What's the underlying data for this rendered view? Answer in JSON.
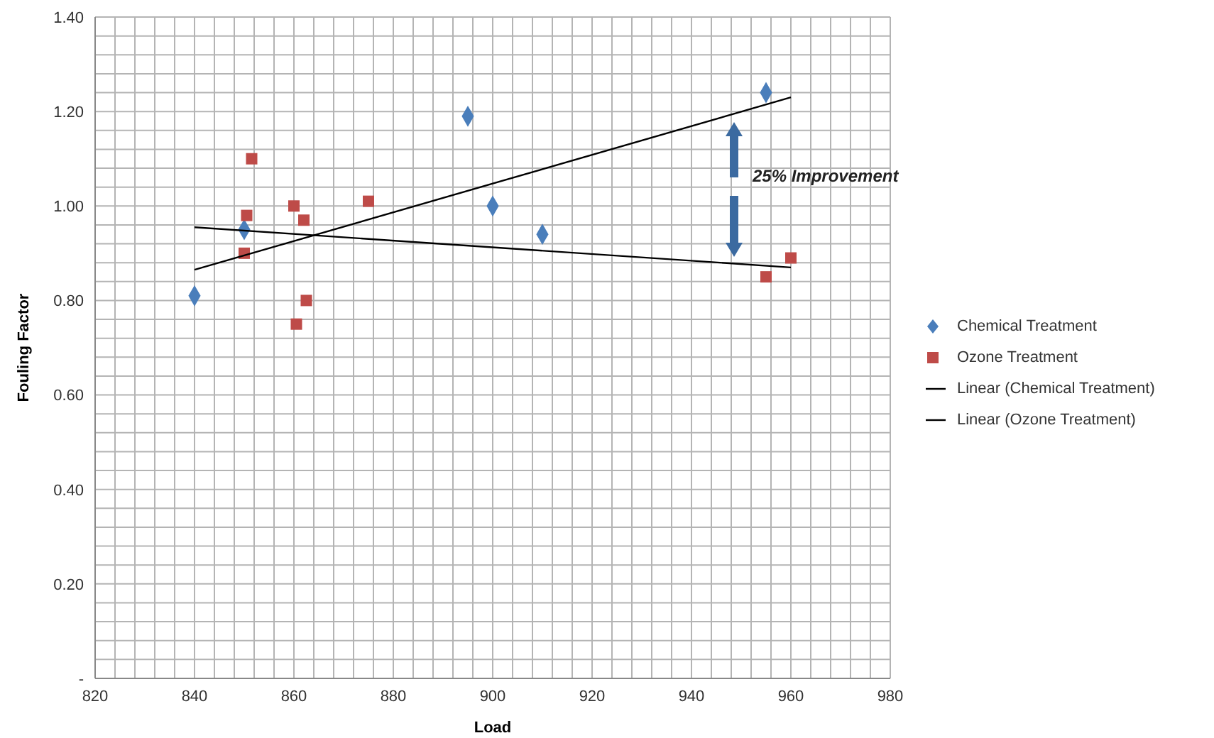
{
  "chart_data": {
    "type": "scatter",
    "xlabel": "Load",
    "ylabel": "Fouling Factor",
    "xlim": [
      820,
      980
    ],
    "ylim": [
      0,
      1.4
    ],
    "xticks": [
      820,
      {
        "value": 824,
        "label": null
      },
      {
        "value": 828,
        "label": null
      },
      {
        "value": 832,
        "label": null
      },
      {
        "value": 836,
        "label": null
      },
      840,
      {
        "value": 844,
        "label": null
      },
      {
        "value": 848,
        "label": null
      },
      {
        "value": 852,
        "label": null
      },
      {
        "value": 856,
        "label": null
      },
      860,
      {
        "value": 864,
        "label": null
      },
      {
        "value": 868,
        "label": null
      },
      {
        "value": 872,
        "label": null
      },
      {
        "value": 876,
        "label": null
      },
      880,
      {
        "value": 884,
        "label": null
      },
      {
        "value": 888,
        "label": null
      },
      {
        "value": 892,
        "label": null
      },
      {
        "value": 896,
        "label": null
      },
      900,
      {
        "value": 904,
        "label": null
      },
      {
        "value": 908,
        "label": null
      },
      {
        "value": 912,
        "label": null
      },
      {
        "value": 916,
        "label": null
      },
      920,
      {
        "value": 924,
        "label": null
      },
      {
        "value": 928,
        "label": null
      },
      {
        "value": 932,
        "label": null
      },
      {
        "value": 936,
        "label": null
      },
      940,
      {
        "value": 944,
        "label": null
      },
      {
        "value": 948,
        "label": null
      },
      {
        "value": 952,
        "label": null
      },
      {
        "value": 956,
        "label": null
      },
      960,
      {
        "value": 964,
        "label": null
      },
      {
        "value": 968,
        "label": null
      },
      {
        "value": 972,
        "label": null
      },
      {
        "value": 976,
        "label": null
      },
      980
    ],
    "yticks": [
      {
        "value": 0,
        "label": "-"
      },
      {
        "value": 0.04,
        "label": null
      },
      {
        "value": 0.08,
        "label": null
      },
      {
        "value": 0.12,
        "label": null
      },
      {
        "value": 0.16,
        "label": null
      },
      {
        "value": 0.2,
        "label": "0.20"
      },
      {
        "value": 0.24,
        "label": null
      },
      {
        "value": 0.28,
        "label": null
      },
      {
        "value": 0.32,
        "label": null
      },
      {
        "value": 0.36,
        "label": null
      },
      {
        "value": 0.4,
        "label": "0.40"
      },
      {
        "value": 0.44,
        "label": null
      },
      {
        "value": 0.48,
        "label": null
      },
      {
        "value": 0.52,
        "label": null
      },
      {
        "value": 0.56,
        "label": null
      },
      {
        "value": 0.6,
        "label": "0.60"
      },
      {
        "value": 0.64,
        "label": null
      },
      {
        "value": 0.68,
        "label": null
      },
      {
        "value": 0.72,
        "label": null
      },
      {
        "value": 0.76,
        "label": null
      },
      {
        "value": 0.8,
        "label": "0.80"
      },
      {
        "value": 0.84,
        "label": null
      },
      {
        "value": 0.88,
        "label": null
      },
      {
        "value": 0.92,
        "label": null
      },
      {
        "value": 0.96,
        "label": null
      },
      {
        "value": 1.0,
        "label": "1.00"
      },
      {
        "value": 1.04,
        "label": null
      },
      {
        "value": 1.08,
        "label": null
      },
      {
        "value": 1.12,
        "label": null
      },
      {
        "value": 1.16,
        "label": null
      },
      {
        "value": 1.2,
        "label": "1.20"
      },
      {
        "value": 1.24,
        "label": null
      },
      {
        "value": 1.28,
        "label": null
      },
      {
        "value": 1.32,
        "label": null
      },
      {
        "value": 1.36,
        "label": null
      },
      {
        "value": 1.4,
        "label": "1.40"
      }
    ],
    "grid": true,
    "legend": "right",
    "annotations": [
      "25% Improvement"
    ],
    "series": [
      {
        "name": "Chemical Treatment",
        "type": "scatter",
        "marker": "diamond",
        "color": "#4a7ebb",
        "x": [
          840,
          850,
          895,
          900,
          910,
          955
        ],
        "values": [
          0.81,
          0.95,
          1.19,
          1.0,
          0.94,
          1.24
        ]
      },
      {
        "name": "Ozone Treatment",
        "type": "scatter",
        "marker": "square",
        "color": "#be4b48",
        "x": [
          850,
          850.5,
          851.5,
          860,
          862,
          860.5,
          862.5,
          875,
          955,
          960
        ],
        "values": [
          0.9,
          0.98,
          1.1,
          1.0,
          0.97,
          0.75,
          0.8,
          1.01,
          0.85,
          0.89
        ]
      },
      {
        "name": "Linear (Chemical Treatment)",
        "type": "line",
        "marker": "none",
        "color": "#000000",
        "x": [
          840,
          960
        ],
        "values": [
          0.865,
          1.23
        ]
      },
      {
        "name": "Linear (Ozone Treatment)",
        "type": "line",
        "marker": "none",
        "color": "#000000",
        "x": [
          840,
          960
        ],
        "values": [
          0.955,
          0.87
        ]
      }
    ]
  }
}
